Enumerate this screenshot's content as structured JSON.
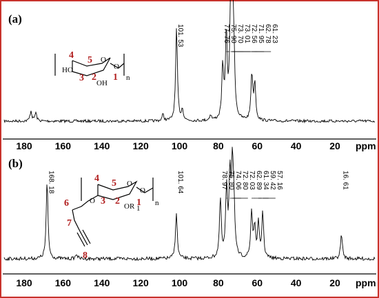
{
  "chart_data": [
    {
      "type": "line",
      "panel_label": "(a)",
      "xlabel": "ppm",
      "xlim": [
        190,
        0
      ],
      "x_ticks": [
        180,
        160,
        140,
        120,
        100,
        80,
        60,
        40,
        20
      ],
      "peak_labels": [
        "101. 53",
        "77. 76",
        "75. 90",
        "73. 70",
        "73. 01",
        "72. 56",
        "71. 95",
        "62. 78",
        "61. 23"
      ],
      "peaks": [
        {
          "x": 101.53,
          "height": 1.0
        },
        {
          "x": 77.76,
          "height": 0.55
        },
        {
          "x": 75.9,
          "height": 0.9
        },
        {
          "x": 73.7,
          "height": 0.95
        },
        {
          "x": 73.01,
          "height": 0.92
        },
        {
          "x": 72.56,
          "height": 0.55
        },
        {
          "x": 71.95,
          "height": 0.45
        },
        {
          "x": 62.78,
          "height": 0.5
        },
        {
          "x": 61.23,
          "height": 0.4
        },
        {
          "x": 176.5,
          "height": 0.11
        },
        {
          "x": 174.0,
          "height": 0.09
        },
        {
          "x": 98.5,
          "height": 0.12
        },
        {
          "x": 108.5,
          "height": 0.07
        },
        {
          "x": 84.0,
          "height": 0.06
        }
      ],
      "structure": {
        "atom_numbers": [
          "4",
          "5",
          "3",
          "2",
          "1"
        ],
        "labels": [
          "HO",
          "OH",
          "O",
          "O",
          "n"
        ]
      }
    },
    {
      "type": "line",
      "panel_label": "(b)",
      "xlabel": "ppm",
      "xlim": [
        190,
        0
      ],
      "x_ticks": [
        180,
        160,
        140,
        120,
        100,
        80,
        60,
        40,
        20
      ],
      "peak_labels": [
        "168. 18",
        "101. 64",
        "78. 97",
        "75. 80",
        "74. 06",
        "72. 80",
        "72. 03",
        "62. 89",
        "61. 34",
        "59. 42",
        "57. 16",
        "16. 61"
      ],
      "peaks": [
        {
          "x": 168.18,
          "height": 0.92
        },
        {
          "x": 101.64,
          "height": 0.55
        },
        {
          "x": 78.97,
          "height": 0.7
        },
        {
          "x": 75.8,
          "height": 0.8
        },
        {
          "x": 74.06,
          "height": 0.95
        },
        {
          "x": 72.8,
          "height": 1.0
        },
        {
          "x": 72.03,
          "height": 0.55
        },
        {
          "x": 62.89,
          "height": 0.55
        },
        {
          "x": 61.34,
          "height": 0.35
        },
        {
          "x": 59.42,
          "height": 0.4
        },
        {
          "x": 57.16,
          "height": 0.55
        },
        {
          "x": 16.61,
          "height": 0.3
        },
        {
          "x": 153.0,
          "height": 0.06
        }
      ],
      "structure": {
        "atom_numbers": [
          "4",
          "5",
          "6",
          "3",
          "2",
          "1",
          "7",
          "8"
        ],
        "labels": [
          "O",
          "O",
          "O",
          "OR",
          "1",
          "n"
        ]
      }
    }
  ]
}
